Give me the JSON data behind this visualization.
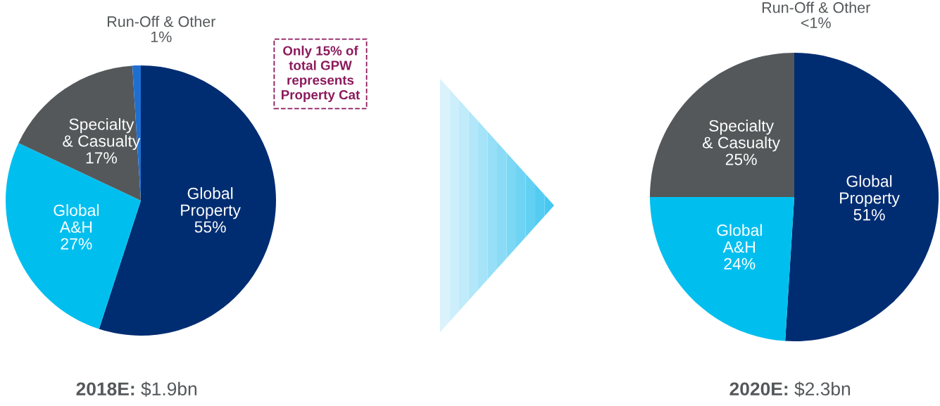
{
  "chart_data": [
    {
      "type": "pie",
      "title": "2018E: $1.9bn",
      "categories": [
        "Global\nProperty",
        "Global\nA&H",
        "Specialty\n& Casualty",
        "Run-Off & Other"
      ],
      "values": [
        55,
        27,
        17,
        1
      ],
      "value_labels": [
        "55%",
        "27%",
        "17%",
        "1%"
      ],
      "colors": [
        "#002d72",
        "#00bfef",
        "#54585a",
        "#1f6fd1"
      ],
      "annotations": [
        "Only 15% of\ntotal GPW\nrepresents\nProperty Cat"
      ],
      "legend": false
    },
    {
      "type": "pie",
      "title": "2020E: $2.3bn",
      "categories": [
        "Global\nProperty",
        "Global\nA&H",
        "Specialty\n& Casualty",
        "Run-Off & Other"
      ],
      "values": [
        51,
        24,
        25,
        0
      ],
      "value_labels": [
        "51%",
        "24%",
        "25%",
        "<1%"
      ],
      "colors": [
        "#002d72",
        "#00bfef",
        "#54585a",
        "#1f6fd1"
      ],
      "legend": false
    }
  ]
}
